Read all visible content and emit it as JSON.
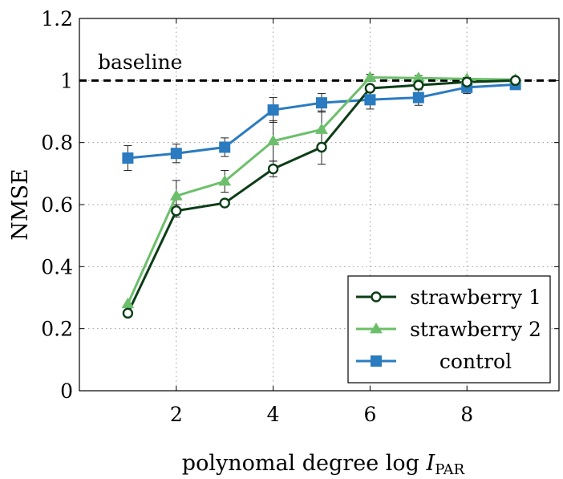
{
  "chart_data": {
    "type": "line",
    "xlabel": {
      "main": "polynomal degree log ",
      "italic": "I",
      "sub": "PAR"
    },
    "ylabel": "NMSE",
    "xlim": [
      0,
      9.9
    ],
    "ylim": [
      0,
      1.2
    ],
    "xticks": [
      2,
      4,
      6,
      8
    ],
    "yticks": [
      0,
      0.2,
      0.4,
      0.6,
      0.8,
      1,
      1.2
    ],
    "ytick_labels": [
      "0",
      "0.2",
      "0.4",
      "0.6",
      "0.8",
      "1",
      "1.2"
    ],
    "grid": true,
    "baseline": {
      "y": 1.0,
      "label": "baseline",
      "style": "dashed",
      "color": "#000000"
    },
    "legend_position": "bottom-right",
    "x": [
      1,
      2,
      3,
      4,
      5,
      6,
      7,
      8,
      9
    ],
    "series": [
      {
        "name": "strawberry 1",
        "marker": "circle",
        "color": "#0b3d16",
        "values": [
          0.25,
          0.58,
          0.605,
          0.715,
          0.785,
          0.975,
          0.985,
          0.995,
          1.0
        ],
        "errors": [
          0,
          0.02,
          0.01,
          0.025,
          0.055,
          0.01,
          0.01,
          0.005,
          0.003
        ]
      },
      {
        "name": "strawberry 2",
        "marker": "triangle",
        "color": "#6cbf6a",
        "values": [
          0.28,
          0.628,
          0.675,
          0.805,
          0.842,
          1.01,
          1.008,
          1.005,
          1.003
        ],
        "errors": [
          0,
          0.05,
          0.035,
          0.065,
          0.06,
          0.01,
          0.008,
          0.005,
          0.003
        ]
      },
      {
        "name": "control",
        "marker": "square",
        "color": "#2a7bc0",
        "values": [
          0.75,
          0.765,
          0.785,
          0.905,
          0.928,
          0.938,
          0.945,
          0.978,
          0.987
        ],
        "errors": [
          0.04,
          0.03,
          0.03,
          0.04,
          0.03,
          0.03,
          0.025,
          0.02,
          0.015
        ]
      }
    ]
  }
}
